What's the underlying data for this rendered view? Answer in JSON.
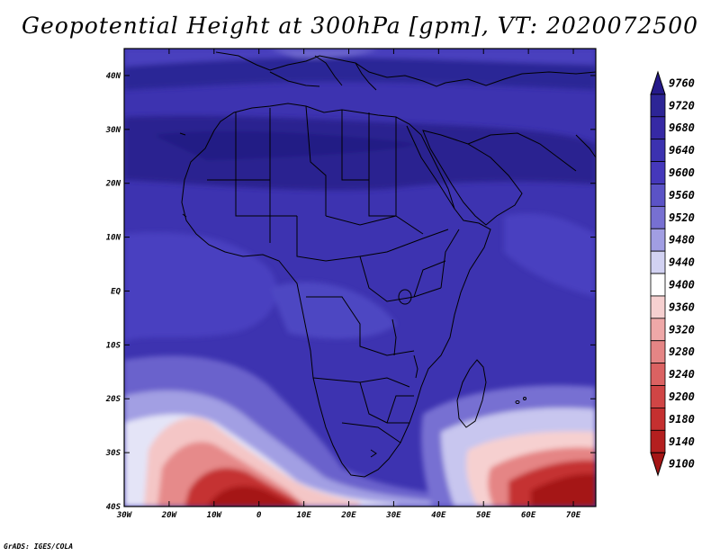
{
  "title": "Geopotential Height at 300hPa [gpm], VT: 2020072500",
  "credit": "GrADS: IGES/COLA",
  "map": {
    "lon_range": [
      -30,
      75
    ],
    "lat_range": [
      -40,
      45
    ],
    "x_ticks": [
      "30W",
      "20W",
      "10W",
      "0",
      "10E",
      "20E",
      "30E",
      "40E",
      "50E",
      "60E",
      "70E"
    ],
    "y_ticks": [
      "40S",
      "30S",
      "20S",
      "10S",
      "EQ",
      "10N",
      "20N",
      "30N",
      "40N"
    ]
  },
  "colorbar": {
    "levels": [
      "9760",
      "9720",
      "9680",
      "9640",
      "9600",
      "9560",
      "9520",
      "9480",
      "9440",
      "9400",
      "9360",
      "9320",
      "9280",
      "9240",
      "9200",
      "9180",
      "9140",
      "9100"
    ],
    "colors": [
      "#251a8a",
      "#2d2596",
      "#3629a5",
      "#3c32b0",
      "#4538bb",
      "#5b53c6",
      "#7770d2",
      "#a19ee3",
      "#d2d2f2",
      "#ffffff",
      "#f6d0d0",
      "#efa8a8",
      "#e58585",
      "#db6262",
      "#d04545",
      "#c53030",
      "#b41f1f",
      "#a51515"
    ]
  }
}
